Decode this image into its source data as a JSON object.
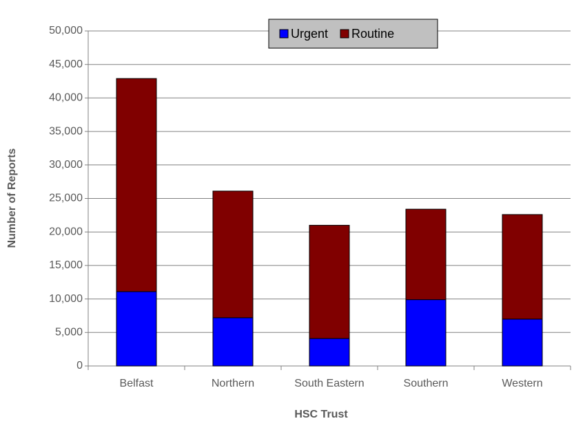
{
  "chart_data": {
    "type": "stacked_bar",
    "x_label": "HSC Trust",
    "y_label": "Number of Reports",
    "categories": [
      "Belfast",
      "Northern",
      "South Eastern",
      "Southern",
      "Western"
    ],
    "series": [
      {
        "name": "Urgent",
        "color": "#0000ff",
        "values": [
          11100,
          7200,
          4100,
          9900,
          7000
        ]
      },
      {
        "name": "Routine",
        "color": "#800000",
        "values": [
          31800,
          18900,
          16900,
          13500,
          15600
        ]
      }
    ],
    "ylim": [
      0,
      50000
    ],
    "yticks": [
      0,
      {
        "value": 5000,
        "label": "5,000"
      },
      {
        "value": 10000,
        "label": "10,000"
      },
      {
        "value": 15000,
        "label": "15,000"
      },
      {
        "value": 20000,
        "label": "20,000"
      },
      {
        "value": 25000,
        "label": "25,000"
      },
      {
        "value": 30000,
        "label": "30,000"
      },
      {
        "value": 35000,
        "label": "35,000"
      },
      {
        "value": 40000,
        "label": "40,000"
      },
      {
        "value": 45000,
        "label": "45,000"
      },
      {
        "value": 50000,
        "label": "50,000"
      }
    ],
    "grid": true,
    "legend": "top"
  }
}
